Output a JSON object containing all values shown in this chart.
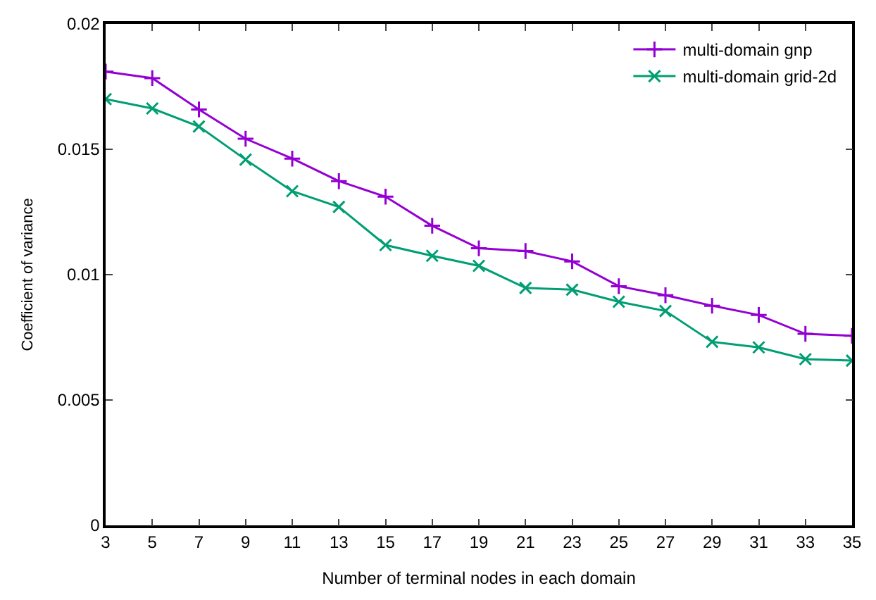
{
  "chart_data": {
    "type": "line",
    "xlabel": "Number of terminal nodes in each domain",
    "ylabel": "Coefficient of variance",
    "x": [
      3,
      5,
      7,
      9,
      11,
      13,
      15,
      17,
      19,
      21,
      23,
      25,
      27,
      29,
      31,
      33,
      35
    ],
    "series": [
      {
        "name": "multi-domain gnp",
        "color": "#9400d3",
        "marker": "plus",
        "values": [
          0.0181,
          0.01784,
          0.01659,
          0.01542,
          0.01463,
          0.01373,
          0.01311,
          0.01195,
          0.01105,
          0.01094,
          0.01053,
          0.00954,
          0.00918,
          0.00876,
          0.00839,
          0.00764,
          0.00756
        ]
      },
      {
        "name": "multi-domain grid-2d",
        "color": "#009e73",
        "marker": "cross",
        "values": [
          0.017,
          0.01663,
          0.01591,
          0.01459,
          0.01333,
          0.0127,
          0.01118,
          0.01075,
          0.01035,
          0.00947,
          0.0094,
          0.00892,
          0.00855,
          0.00732,
          0.0071,
          0.00663,
          0.00657
        ]
      }
    ],
    "xlim": [
      3,
      35
    ],
    "xticks": [
      3,
      5,
      7,
      9,
      11,
      13,
      15,
      17,
      19,
      21,
      23,
      25,
      27,
      29,
      31,
      33,
      35
    ],
    "ylim": [
      0,
      0.02
    ],
    "yticks": [
      0,
      0.005,
      0.01,
      0.015,
      0.02
    ],
    "legend": "top right",
    "line_style": "solid"
  }
}
